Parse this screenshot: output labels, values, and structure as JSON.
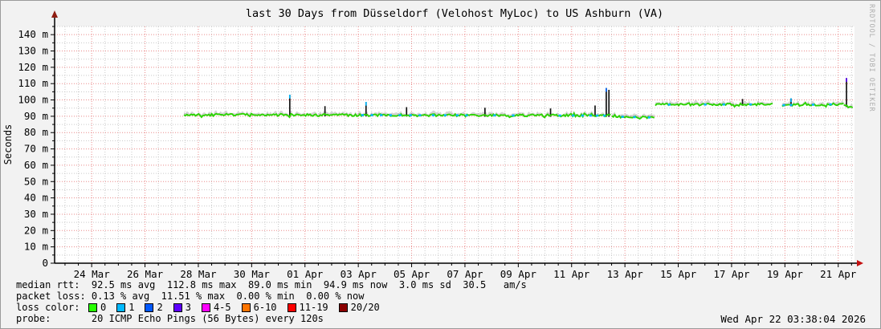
{
  "header": {
    "title": "last 30 Days from Düsseldorf (Velohost MyLoc) to US Ashburn (VA)"
  },
  "watermark": "RRDTOOL / TOBI OETIKER",
  "footer": {
    "median_rtt_line": "median rtt:  92.5 ms avg  112.8 ms max  89.0 ms min  94.9 ms now  3.0 ms sd  30.5   am/s",
    "packet_loss_line": "packet loss: 0.13 % avg  11.51 % max  0.00 % min  0.00 % now",
    "loss_color_label": "loss color:",
    "loss_legend": [
      {
        "label": "0",
        "color": "#26ff00"
      },
      {
        "label": "1",
        "color": "#00b8ff"
      },
      {
        "label": "2",
        "color": "#0059ff"
      },
      {
        "label": "3",
        "color": "#5e00ff"
      },
      {
        "label": "4-5",
        "color": "#ff00ff"
      },
      {
        "label": "6-10",
        "color": "#ff7500"
      },
      {
        "label": "11-19",
        "color": "#ff0000"
      },
      {
        "label": "20/20",
        "color": "#8b0000"
      }
    ],
    "probe_line": "probe:       20 ICMP Echo Pings (56 Bytes) every 120s",
    "timestamp": "Wed Apr 22 03:38:04 2026"
  },
  "chart_data": {
    "type": "line",
    "title": "last 30 Days from Düsseldorf (Velohost MyLoc) to US Ashburn (VA)",
    "ylabel": "Seconds",
    "xlabel": "",
    "x_axis": {
      "range_days": [
        0,
        30
      ],
      "ticks": [
        {
          "label": "24 Mar",
          "day": 1.39
        },
        {
          "label": "26 Mar",
          "day": 3.39
        },
        {
          "label": "28 Mar",
          "day": 5.39
        },
        {
          "label": "30 Mar",
          "day": 7.39
        },
        {
          "label": "01 Apr",
          "day": 9.39
        },
        {
          "label": "03 Apr",
          "day": 11.39
        },
        {
          "label": "05 Apr",
          "day": 13.39
        },
        {
          "label": "07 Apr",
          "day": 15.39
        },
        {
          "label": "09 Apr",
          "day": 17.39
        },
        {
          "label": "11 Apr",
          "day": 19.39
        },
        {
          "label": "13 Apr",
          "day": 21.39
        },
        {
          "label": "15 Apr",
          "day": 23.39
        },
        {
          "label": "17 Apr",
          "day": 25.39
        },
        {
          "label": "19 Apr",
          "day": 27.39
        },
        {
          "label": "21 Apr",
          "day": 29.39
        }
      ],
      "minor_step_days": 0.5
    },
    "y_axis": {
      "range_ms": [
        0,
        145
      ],
      "ticks": [
        {
          "label": "0",
          "value": 0
        },
        {
          "label": "10 m",
          "value": 10
        },
        {
          "label": "20 m",
          "value": 20
        },
        {
          "label": "30 m",
          "value": 30
        },
        {
          "label": "40 m",
          "value": 40
        },
        {
          "label": "50 m",
          "value": 50
        },
        {
          "label": "60 m",
          "value": 60
        },
        {
          "label": "70 m",
          "value": 70
        },
        {
          "label": "80 m",
          "value": 80
        },
        {
          "label": "90 m",
          "value": 90
        },
        {
          "label": "100 m",
          "value": 100
        },
        {
          "label": "110 m",
          "value": 110
        },
        {
          "label": "120 m",
          "value": 120
        },
        {
          "label": "130 m",
          "value": 130
        },
        {
          "label": "140 m",
          "value": 140
        }
      ],
      "minor_step_ms": 5
    },
    "grid": {
      "major_color": "#ea8a8a",
      "minor_color": "#c9c9c9",
      "axis_color": "#000000",
      "arrow_color": "#c41010",
      "plot_bg": "#ffffff"
    },
    "stats": {
      "median_rtt_ms": {
        "avg": 92.5,
        "max": 112.8,
        "min": 89.0,
        "now": 94.9,
        "sd": 3.0,
        "am_per_s": 30.5
      },
      "packet_loss_pct": {
        "avg": 0.13,
        "max": 11.51,
        "min": 0.0,
        "now": 0.0
      }
    },
    "series": {
      "median_rtt": {
        "name": "median rtt",
        "color": "#2bd400",
        "segments": [
          {
            "start_day": 4.85,
            "end_day": 20.9,
            "start_ms": 90.9,
            "end_ms": 90.4,
            "noise_ms": 0.75
          },
          {
            "start_day": 20.9,
            "end_day": 22.5,
            "start_ms": 89.8,
            "end_ms": 89.2,
            "noise_ms": 0.6
          },
          {
            "start_day": 22.53,
            "end_day": 26.98,
            "start_ms": 97.1,
            "end_ms": 97.3,
            "noise_ms": 0.7
          },
          {
            "start_day": 27.28,
            "end_day": 29.6,
            "start_ms": 96.8,
            "end_ms": 97.4,
            "noise_ms": 0.7
          },
          {
            "start_day": 29.6,
            "end_day": 29.93,
            "start_ms": 97.0,
            "end_ms": 95.2,
            "noise_ms": 0.5
          }
        ]
      },
      "smoke": {
        "color": "rgba(120,120,120,0.32)",
        "spread_ms": 1.9
      },
      "spikes": {
        "color": "#141414",
        "points": [
          {
            "day": 8.82,
            "peak_ms": 103.2,
            "tip_color": "#00b8ff"
          },
          {
            "day": 10.14,
            "peak_ms": 96.2
          },
          {
            "day": 11.68,
            "peak_ms": 98.8,
            "tip_color": "#00b8ff"
          },
          {
            "day": 13.2,
            "peak_ms": 95.6
          },
          {
            "day": 16.14,
            "peak_ms": 95.2
          },
          {
            "day": 18.6,
            "peak_ms": 94.8
          },
          {
            "day": 20.27,
            "peak_ms": 96.6
          },
          {
            "day": 20.69,
            "peak_ms": 107.3,
            "tip_color": "#0b6cff"
          },
          {
            "day": 20.79,
            "peak_ms": 106.2
          },
          {
            "day": 25.8,
            "peak_ms": 100.6
          },
          {
            "day": 27.62,
            "peak_ms": 101.0,
            "tip_color": "#00b8ff"
          },
          {
            "day": 29.7,
            "peak_ms": 113.4,
            "tip_color": "#5e00ff"
          }
        ]
      },
      "loss_marks": {
        "color": "#00b8ff",
        "days": [
          11.55,
          11.9,
          12.25,
          12.6,
          12.95,
          13.35,
          13.7,
          14.2,
          14.65,
          15.1,
          15.45,
          16.5,
          17.2,
          18.95,
          19.45,
          19.8,
          20.1,
          20.35,
          20.62,
          21.3,
          21.75,
          22.3,
          23.05,
          24.4,
          25.1,
          26.1,
          27.35,
          27.62,
          28.45,
          29.1
        ]
      }
    }
  }
}
